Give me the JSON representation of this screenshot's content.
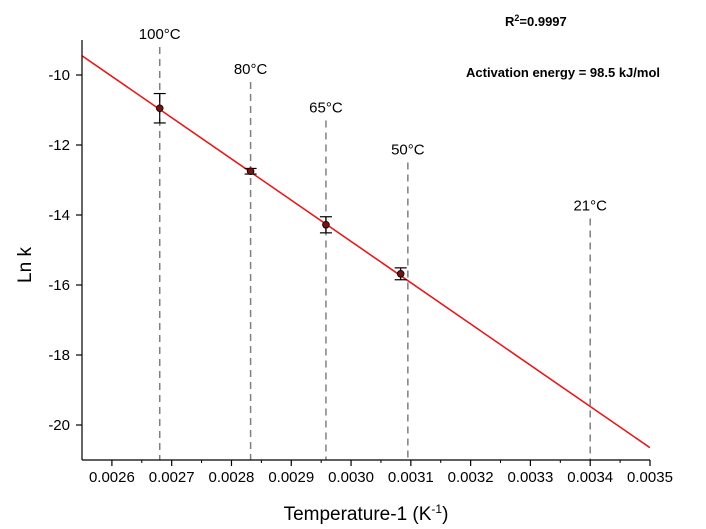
{
  "chart_data": {
    "type": "scatter",
    "xlabel_main": "Temperature-1 (K",
    "xlabel_sup": "-1",
    "xlabel_close": ")",
    "ylabel": "Ln k",
    "xlim": [
      0.00255,
      0.0035
    ],
    "ylim": [
      -21,
      -9
    ],
    "grid": false,
    "x_ticks": [
      0.0026,
      0.0027,
      0.0028,
      0.0029,
      0.003,
      0.0031,
      0.0032,
      0.0033,
      0.0034,
      0.0035
    ],
    "x_tick_labels": [
      "0.0026",
      "0.0027",
      "0.0028",
      "0.0029",
      "0.0030",
      "0.0031",
      "0.0032",
      "0.0033",
      "0.0034",
      "0.0035"
    ],
    "y_ticks": [
      -20,
      -18,
      -16,
      -14,
      -12,
      -10
    ],
    "y_tick_labels": [
      "-20",
      "-18",
      "-16",
      "-14",
      "-12",
      "-10"
    ],
    "points": [
      {
        "x": 0.00268,
        "y": -10.95,
        "err": 0.42
      },
      {
        "x": 0.002832,
        "y": -12.75,
        "err": 0.08
      },
      {
        "x": 0.002958,
        "y": -14.28,
        "err": 0.23
      },
      {
        "x": 0.003083,
        "y": -15.68,
        "err": 0.17
      }
    ],
    "fit_line": {
      "x": [
        0.00255,
        0.0035
      ],
      "y": [
        -9.45,
        -20.65
      ],
      "color": "#e8191b"
    },
    "temperature_markers": [
      {
        "x": 0.00268,
        "label": "100°C",
        "line_top_y": -9.2
      },
      {
        "x": 0.002832,
        "label": "80°C",
        "line_top_y": -10.2
      },
      {
        "x": 0.002958,
        "label": "65°C",
        "line_top_y": -11.3
      },
      {
        "x": 0.003095,
        "label": "50°C",
        "line_top_y": -12.5
      },
      {
        "x": 0.0034,
        "label": "21°C",
        "line_top_y": -14.1
      }
    ],
    "r2_prefix": "R",
    "r2_sup": "2",
    "r2_value": "=0.9997",
    "activation_energy": "Activation energy = 98.5 kJ/mol",
    "colors": {
      "line": "#e8191b",
      "marker": "#7a1010",
      "dash": "#808080",
      "axis": "#000000"
    }
  }
}
